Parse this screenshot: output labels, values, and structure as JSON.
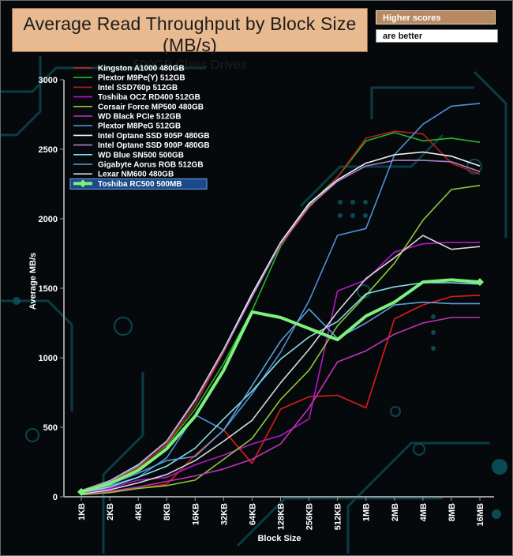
{
  "header": {
    "title": "Average Read Throughput by Block Size (MB/s)",
    "subtitle": "500GB Class Drives",
    "note_higher": "Higher scores",
    "note_better": "are better"
  },
  "chart_data": {
    "type": "line",
    "title": "Average Read Throughput by Block Size (MB/s)",
    "subtitle": "500GB Class Drives",
    "xlabel": "Block Size",
    "ylabel": "Average MB/s",
    "ylim": [
      0,
      3000
    ],
    "yticks": [
      "0",
      "500",
      "1000",
      "1500",
      "2000",
      "2500",
      "3000"
    ],
    "categories": [
      "1KB",
      "2KB",
      "4KB",
      "8KB",
      "16KB",
      "32KB",
      "64KB",
      "128KB",
      "256KB",
      "512KB",
      "1MB",
      "2MB",
      "4MB",
      "8MB",
      "16MB"
    ],
    "grid": false,
    "legend_position": "top-left",
    "series": [
      {
        "name": "Kingston A1000 480GB",
        "color": "#e01b1b",
        "values": [
          18,
          40,
          60,
          90,
          300,
          480,
          240,
          630,
          720,
          730,
          640,
          1280,
          1380,
          1440,
          1450
        ]
      },
      {
        "name": "Plextor M9Pe(Y) 512GB",
        "color": "#27b527",
        "values": [
          45,
          110,
          215,
          370,
          630,
          960,
          1340,
          1800,
          2100,
          2300,
          2560,
          2620,
          2560,
          2580,
          2550
        ]
      },
      {
        "name": "Intel SSD760p 512GB",
        "color": "#b81c1c",
        "values": [
          40,
          105,
          205,
          380,
          660,
          1040,
          1460,
          1810,
          2080,
          2300,
          2580,
          2630,
          2610,
          2400,
          2320
        ]
      },
      {
        "name": "Toshiba OCZ RD400 512GB",
        "color": "#b517c9",
        "values": [
          30,
          60,
          120,
          140,
          230,
          300,
          380,
          440,
          560,
          1480,
          1560,
          1760,
          1820,
          1830,
          1830
        ]
      },
      {
        "name": "Corsair Force MP500 480GB",
        "color": "#8fc83a",
        "values": [
          15,
          30,
          60,
          80,
          120,
          270,
          420,
          700,
          910,
          1230,
          1450,
          1680,
          1990,
          2210,
          2240
        ]
      },
      {
        "name": "WD Black PCIe 512GB",
        "color": "#c432b8",
        "values": [
          20,
          40,
          70,
          110,
          150,
          200,
          270,
          380,
          640,
          970,
          1050,
          1170,
          1250,
          1290,
          1290
        ]
      },
      {
        "name": "Plextor M8PeG 512GB",
        "color": "#4f8fd8",
        "values": [
          30,
          80,
          140,
          280,
          590,
          480,
          740,
          1040,
          1410,
          1880,
          1930,
          2460,
          2680,
          2810,
          2830
        ]
      },
      {
        "name": "Intel Optane SSD 905P 480GB",
        "color": "#f4f4f4",
        "values": [
          45,
          115,
          230,
          400,
          700,
          1060,
          1460,
          1830,
          2110,
          2280,
          2400,
          2460,
          2480,
          2450,
          2380
        ]
      },
      {
        "name": "Intel Optane SSD 900P 480GB",
        "color": "#a880c8",
        "values": [
          45,
          110,
          225,
          395,
          690,
          1050,
          1440,
          1820,
          2090,
          2270,
          2380,
          2420,
          2420,
          2410,
          2340
        ]
      },
      {
        "name": "WD Blue SN500 500GB",
        "color": "#84dde8",
        "values": [
          30,
          70,
          140,
          220,
          350,
          560,
          760,
          990,
          1150,
          1260,
          1460,
          1510,
          1540,
          1540,
          1530
        ]
      },
      {
        "name": "Gigabyte Aorus RGB 512GB",
        "color": "#5c9fd8",
        "values": [
          30,
          90,
          170,
          260,
          290,
          480,
          800,
          1120,
          1350,
          1140,
          1250,
          1380,
          1400,
          1390,
          1390
        ]
      },
      {
        "name": "Lexar NM600 480GB",
        "color": "#d8d8d8",
        "values": [
          20,
          50,
          100,
          160,
          260,
          400,
          550,
          820,
          1060,
          1330,
          1570,
          1720,
          1880,
          1780,
          1800
        ]
      },
      {
        "name": "Toshiba RC500 500MB",
        "color": "#7df07d",
        "values": [
          35,
          95,
          190,
          345,
          580,
          910,
          1330,
          1290,
          1210,
          1130,
          1300,
          1400,
          1545,
          1560,
          1545
        ]
      }
    ]
  }
}
